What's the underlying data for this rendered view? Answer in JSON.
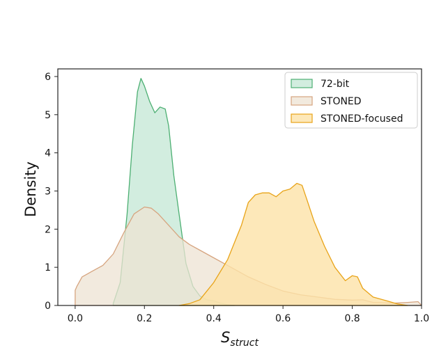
{
  "chart_data": {
    "type": "area",
    "title": "",
    "ylabel": "Density",
    "xlabel_main": "S",
    "xlabel_sub": "struct",
    "xlim": [
      -0.05,
      1.0
    ],
    "ylim": [
      0,
      6.2
    ],
    "xticks": [
      "0.0",
      "0.2",
      "0.4",
      "0.6",
      "0.8",
      "1.0"
    ],
    "yticks": [
      "0",
      "1",
      "2",
      "3",
      "4",
      "5",
      "6"
    ],
    "legend_position": "top-right",
    "series": [
      {
        "name": "72-bit",
        "fill": "#cdebdc",
        "stroke": "#4caf72",
        "fill_opacity": 0.9,
        "x": [
          0.11,
          0.13,
          0.15,
          0.165,
          0.18,
          0.19,
          0.2,
          0.215,
          0.23,
          0.245,
          0.26,
          0.27,
          0.285,
          0.3,
          0.32,
          0.34,
          0.36,
          0.38,
          0.4,
          0.42,
          0.44,
          0.46
        ],
        "y": [
          0.05,
          0.6,
          2.4,
          4.2,
          5.6,
          5.95,
          5.75,
          5.35,
          5.05,
          5.2,
          5.15,
          4.7,
          3.4,
          2.4,
          1.1,
          0.5,
          0.25,
          0.15,
          0.12,
          0.06,
          0.02,
          0.0
        ]
      },
      {
        "name": "STONED",
        "fill": "#eee3d3",
        "stroke": "#d6a47f",
        "fill_opacity": 0.75,
        "x": [
          0.0,
          0.005,
          0.02,
          0.05,
          0.08,
          0.11,
          0.14,
          0.17,
          0.2,
          0.22,
          0.24,
          0.27,
          0.3,
          0.33,
          0.36,
          0.4,
          0.45,
          0.5,
          0.55,
          0.6,
          0.65,
          0.7,
          0.75,
          0.8,
          0.83,
          0.86,
          0.88,
          0.92,
          0.96,
          0.99,
          1.0
        ],
        "y": [
          0.4,
          0.5,
          0.75,
          0.9,
          1.05,
          1.35,
          1.9,
          2.4,
          2.58,
          2.55,
          2.4,
          2.1,
          1.8,
          1.6,
          1.45,
          1.25,
          1.0,
          0.75,
          0.55,
          0.38,
          0.28,
          0.22,
          0.16,
          0.14,
          0.15,
          0.08,
          0.08,
          0.06,
          0.08,
          0.1,
          0.0
        ]
      },
      {
        "name": "STONED-focused",
        "fill": "#fde2a8",
        "stroke": "#e8a317",
        "fill_opacity": 0.8,
        "x": [
          0.3,
          0.33,
          0.36,
          0.4,
          0.44,
          0.48,
          0.5,
          0.52,
          0.54,
          0.56,
          0.58,
          0.6,
          0.62,
          0.64,
          0.655,
          0.67,
          0.69,
          0.72,
          0.75,
          0.78,
          0.8,
          0.815,
          0.83,
          0.86,
          0.9,
          0.93,
          0.96
        ],
        "y": [
          0.0,
          0.05,
          0.15,
          0.6,
          1.2,
          2.1,
          2.7,
          2.9,
          2.95,
          2.95,
          2.85,
          3.0,
          3.05,
          3.2,
          3.15,
          2.75,
          2.2,
          1.55,
          1.0,
          0.65,
          0.78,
          0.75,
          0.45,
          0.22,
          0.12,
          0.04,
          0.0
        ]
      }
    ]
  }
}
